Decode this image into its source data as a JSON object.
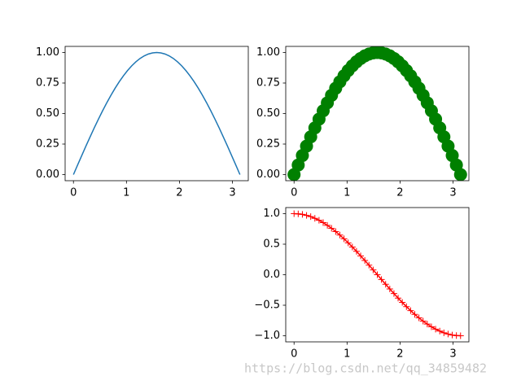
{
  "chart_data": [
    {
      "type": "line",
      "x": [
        0,
        0.0785,
        0.1571,
        0.2356,
        0.3142,
        0.3927,
        0.4712,
        0.5498,
        0.6283,
        0.7069,
        0.7854,
        0.8639,
        0.9425,
        1.021,
        1.0996,
        1.1781,
        1.2566,
        1.3352,
        1.4137,
        1.4923,
        1.5708,
        1.6493,
        1.7279,
        1.8064,
        1.885,
        1.9635,
        2.042,
        2.1206,
        2.1991,
        2.2777,
        2.3562,
        2.4347,
        2.5133,
        2.5918,
        2.6704,
        2.7489,
        2.8274,
        2.906,
        2.9845,
        3.0631,
        3.1416
      ],
      "series": [
        {
          "color": "#1f77b4",
          "line": true,
          "marker": "none",
          "values": [
            0,
            0.0785,
            0.1564,
            0.2334,
            0.309,
            0.3827,
            0.454,
            0.5225,
            0.5878,
            0.6494,
            0.7071,
            0.7604,
            0.809,
            0.8526,
            0.891,
            0.9239,
            0.9511,
            0.9724,
            0.9877,
            0.9969,
            1,
            0.9969,
            0.9877,
            0.9724,
            0.9511,
            0.9239,
            0.891,
            0.8526,
            0.809,
            0.7604,
            0.7071,
            0.6494,
            0.5878,
            0.5225,
            0.454,
            0.3827,
            0.309,
            0.2334,
            0.1564,
            0.0785,
            0
          ]
        }
      ],
      "xlim": [
        -0.157,
        3.299
      ],
      "xticks": [
        0,
        1,
        2,
        3
      ],
      "ylim": [
        -0.05,
        1.05
      ],
      "yticks": [
        {
          "value": 0,
          "label": "0.00"
        },
        {
          "value": 0.25,
          "label": "0.25"
        },
        {
          "value": 0.5,
          "label": "0.50"
        },
        {
          "value": 0.75,
          "label": "0.75"
        },
        {
          "value": 1,
          "label": "1.00"
        }
      ]
    },
    {
      "type": "line",
      "x": [
        0,
        0.0785,
        0.1571,
        0.2356,
        0.3142,
        0.3927,
        0.4712,
        0.5498,
        0.6283,
        0.7069,
        0.7854,
        0.8639,
        0.9425,
        1.021,
        1.0996,
        1.1781,
        1.2566,
        1.3352,
        1.4137,
        1.4923,
        1.5708,
        1.6493,
        1.7279,
        1.8064,
        1.885,
        1.9635,
        2.042,
        2.1206,
        2.1991,
        2.2777,
        2.3562,
        2.4347,
        2.5133,
        2.5918,
        2.6704,
        2.7489,
        2.8274,
        2.906,
        2.9845,
        3.0631,
        3.1416
      ],
      "series": [
        {
          "color": "#008000",
          "line": false,
          "marker": "o",
          "values": [
            0,
            0.0785,
            0.1564,
            0.2334,
            0.309,
            0.3827,
            0.454,
            0.5225,
            0.5878,
            0.6494,
            0.7071,
            0.7604,
            0.809,
            0.8526,
            0.891,
            0.9239,
            0.9511,
            0.9724,
            0.9877,
            0.9969,
            1,
            0.9969,
            0.9877,
            0.9724,
            0.9511,
            0.9239,
            0.891,
            0.8526,
            0.809,
            0.7604,
            0.7071,
            0.6494,
            0.5878,
            0.5225,
            0.454,
            0.3827,
            0.309,
            0.2334,
            0.1564,
            0.0785,
            0
          ]
        }
      ],
      "xlim": [
        -0.157,
        3.299
      ],
      "xticks": [
        0,
        1,
        2,
        3
      ],
      "ylim": [
        -0.05,
        1.05
      ],
      "yticks": [
        {
          "value": 0,
          "label": "0.00"
        },
        {
          "value": 0.25,
          "label": "0.25"
        },
        {
          "value": 0.5,
          "label": "0.50"
        },
        {
          "value": 0.75,
          "label": "0.75"
        },
        {
          "value": 1,
          "label": "1.00"
        }
      ]
    },
    {
      "type": "line",
      "x": [
        0,
        0.0785,
        0.1571,
        0.2356,
        0.3142,
        0.3927,
        0.4712,
        0.5498,
        0.6283,
        0.7069,
        0.7854,
        0.8639,
        0.9425,
        1.021,
        1.0996,
        1.1781,
        1.2566,
        1.3352,
        1.4137,
        1.4923,
        1.5708,
        1.6493,
        1.7279,
        1.8064,
        1.885,
        1.9635,
        2.042,
        2.1206,
        2.1991,
        2.2777,
        2.3562,
        2.4347,
        2.5133,
        2.5918,
        2.6704,
        2.7489,
        2.8274,
        2.906,
        2.9845,
        3.0631,
        3.1416
      ],
      "series": [
        {
          "color": "#ff0000",
          "line": true,
          "marker": "+",
          "values": [
            1,
            0.9969,
            0.9877,
            0.9724,
            0.9511,
            0.9239,
            0.891,
            0.8526,
            0.809,
            0.7604,
            0.7071,
            0.6494,
            0.5878,
            0.5225,
            0.454,
            0.3827,
            0.309,
            0.2334,
            0.1564,
            0.0785,
            0,
            -0.0785,
            -0.1564,
            -0.2334,
            -0.309,
            -0.3827,
            -0.454,
            -0.5225,
            -0.5878,
            -0.6494,
            -0.7071,
            -0.7604,
            -0.809,
            -0.8526,
            -0.891,
            -0.9239,
            -0.9511,
            -0.9724,
            -0.9877,
            -0.9969,
            -1
          ]
        }
      ],
      "xlim": [
        -0.157,
        3.299
      ],
      "xticks": [
        0,
        1,
        2,
        3
      ],
      "ylim": [
        -1.1,
        1.1
      ],
      "yticks": [
        {
          "value": -1,
          "label": "−1.0"
        },
        {
          "value": -0.5,
          "label": "−0.5"
        },
        {
          "value": 0,
          "label": "0.0"
        },
        {
          "value": 0.5,
          "label": "0.5"
        },
        {
          "value": 1,
          "label": "1.0"
        }
      ]
    }
  ],
  "watermark": "https://blog.csdn.net/qq_34859482"
}
